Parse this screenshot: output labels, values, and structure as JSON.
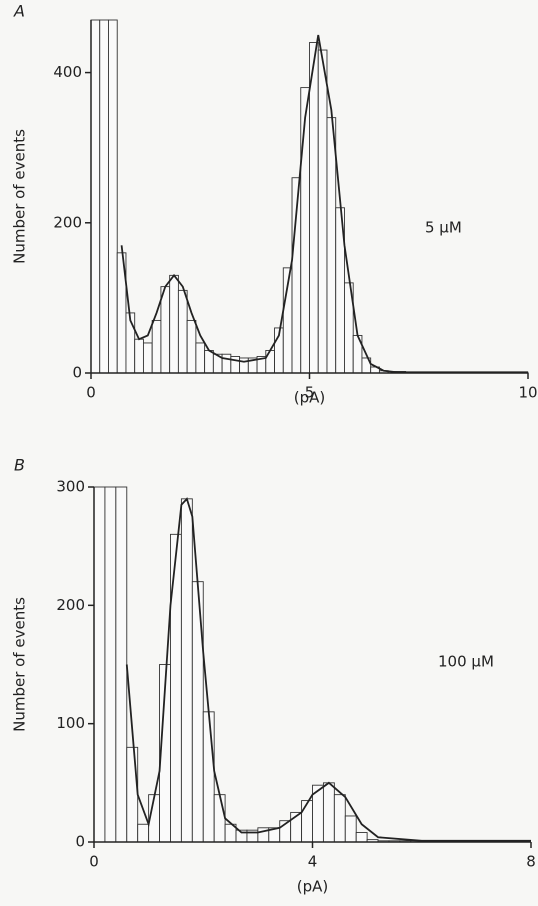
{
  "chart_data": [
    {
      "type": "histogram",
      "panel_label": "A",
      "ylabel": "Number of events",
      "xlabel": "(pA)",
      "annotation": "5 µM",
      "color": "#333333",
      "bins": [
        0,
        0.2,
        0.4,
        0.6,
        0.8,
        1,
        1.2,
        1.4,
        1.6,
        1.8,
        2,
        2.2,
        2.4,
        2.6,
        2.8,
        3,
        3.2,
        3.4,
        3.6,
        3.8,
        4,
        4.2,
        4.4,
        4.6,
        4.8,
        5,
        5.2,
        5.4,
        5.6,
        5.8,
        6,
        6.2,
        6.4,
        6.6,
        6.8,
        7,
        7.2,
        7.4,
        7.6,
        7.8,
        8,
        8.2,
        8.4,
        8.6,
        8.8,
        9,
        9.2,
        9.4,
        9.6,
        9.8,
        10
      ],
      "values": [
        470,
        470,
        470,
        160,
        80,
        45,
        40,
        70,
        115,
        130,
        110,
        70,
        40,
        30,
        25,
        25,
        22,
        20,
        20,
        22,
        30,
        60,
        140,
        260,
        380,
        440,
        430,
        340,
        220,
        120,
        50,
        20,
        8,
        3,
        2,
        2,
        1,
        1,
        1,
        1,
        1,
        1,
        1,
        1,
        1,
        1,
        1,
        1,
        1,
        1
      ],
      "fit": {
        "x": [
          0.7,
          0.9,
          1.1,
          1.3,
          1.5,
          1.7,
          1.9,
          2.1,
          2.3,
          2.5,
          2.7,
          3.0,
          3.5,
          4.0,
          4.3,
          4.6,
          4.9,
          5.2,
          5.5,
          5.8,
          6.1,
          6.4,
          6.7,
          7.0,
          8,
          10
        ],
        "values": [
          170,
          70,
          45,
          50,
          80,
          115,
          130,
          115,
          80,
          50,
          30,
          20,
          15,
          20,
          50,
          150,
          340,
          450,
          350,
          170,
          50,
          12,
          3,
          1,
          1,
          1
        ]
      },
      "xlim": [
        0,
        10
      ],
      "ylim": [
        0,
        470
      ],
      "xticks": [
        0,
        5,
        10
      ],
      "yticks": [
        0,
        200,
        400
      ]
    },
    {
      "type": "histogram",
      "panel_label": "B",
      "ylabel": "Number of events",
      "xlabel": "(pA)",
      "annotation": "100 µM",
      "color": "#333333",
      "bins": [
        0,
        0.2,
        0.4,
        0.6,
        0.8,
        1,
        1.2,
        1.4,
        1.6,
        1.8,
        2,
        2.2,
        2.4,
        2.6,
        2.8,
        3,
        3.2,
        3.4,
        3.6,
        3.8,
        4,
        4.2,
        4.4,
        4.6,
        4.8,
        5,
        5.2,
        5.4,
        5.6,
        5.8,
        6,
        6.2,
        6.4,
        6.6,
        6.8,
        7,
        7.2,
        7.4,
        7.6,
        7.8,
        8
      ],
      "values": [
        300,
        300,
        300,
        80,
        15,
        40,
        150,
        260,
        290,
        220,
        110,
        40,
        15,
        10,
        10,
        12,
        12,
        18,
        25,
        35,
        48,
        50,
        40,
        22,
        8,
        2,
        1,
        1,
        1,
        1,
        0,
        0,
        0,
        0,
        0,
        0,
        0,
        0,
        0,
        0
      ],
      "fit": {
        "x": [
          0.6,
          0.8,
          1.0,
          1.2,
          1.4,
          1.6,
          1.7,
          1.8,
          2.0,
          2.2,
          2.4,
          2.7,
          3.0,
          3.4,
          3.8,
          4.0,
          4.3,
          4.6,
          4.9,
          5.2,
          6,
          8
        ],
        "values": [
          150,
          40,
          15,
          60,
          200,
          285,
          290,
          275,
          160,
          60,
          20,
          8,
          8,
          12,
          25,
          40,
          50,
          38,
          15,
          4,
          1,
          1
        ]
      },
      "xlim": [
        0,
        8
      ],
      "ylim": [
        0,
        300
      ],
      "xticks": [
        0,
        4,
        8
      ],
      "yticks": [
        0,
        100,
        200,
        300
      ]
    }
  ]
}
